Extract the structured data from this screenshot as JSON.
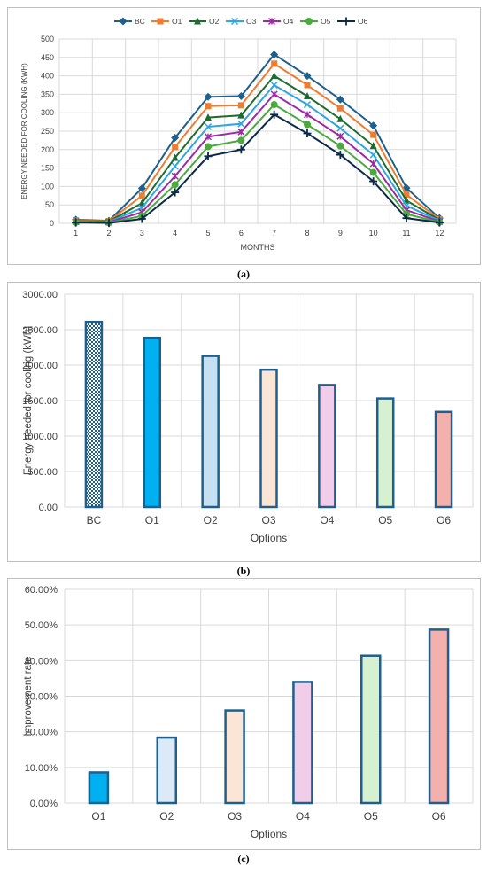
{
  "colors": {
    "BC": "#1f5f8b",
    "O1": "#ed7d31",
    "O2": "#1e6b2e",
    "O3": "#2ea6df",
    "O4": "#9c2ba5",
    "O5": "#4aaa3c",
    "O6": "#0b2a47",
    "bar_border": "#1f5f8b",
    "grid": "#d9d9d9"
  },
  "chart_data": [
    {
      "type": "line",
      "caption": "(a)",
      "title": "",
      "xlabel": "MONTHS",
      "ylabel": "ENERGY NEEDED FOR COOLING (KWH)",
      "x": [
        1,
        2,
        3,
        4,
        5,
        6,
        7,
        8,
        9,
        10,
        11,
        12
      ],
      "x_ticks": [
        "1",
        "2",
        "3",
        "4",
        "5",
        "6",
        "7",
        "8",
        "9",
        "10",
        "11",
        "12"
      ],
      "ylim": [
        0,
        500
      ],
      "y_ticks": [
        "0",
        "50",
        "100",
        "150",
        "200",
        "250",
        "300",
        "350",
        "400",
        "450",
        "500"
      ],
      "grid": true,
      "legend_position": "top",
      "series": [
        {
          "name": "BC",
          "marker": "diamond",
          "values": [
            10,
            7,
            95,
            232,
            343,
            345,
            458,
            400,
            336,
            265,
            96,
            14
          ]
        },
        {
          "name": "O1",
          "marker": "square",
          "values": [
            8,
            6,
            75,
            207,
            318,
            320,
            433,
            375,
            312,
            240,
            78,
            11
          ]
        },
        {
          "name": "O2",
          "marker": "triangle",
          "values": [
            6,
            5,
            55,
            178,
            287,
            293,
            400,
            345,
            283,
            210,
            62,
            9
          ]
        },
        {
          "name": "O3",
          "marker": "x",
          "values": [
            5,
            4,
            42,
            155,
            262,
            270,
            375,
            322,
            258,
            186,
            48,
            7
          ]
        },
        {
          "name": "O4",
          "marker": "xbar",
          "values": [
            4,
            3,
            30,
            128,
            235,
            248,
            350,
            295,
            236,
            162,
            36,
            5
          ]
        },
        {
          "name": "O5",
          "marker": "circle",
          "values": [
            3,
            2,
            20,
            105,
            208,
            225,
            322,
            268,
            210,
            138,
            25,
            3
          ]
        },
        {
          "name": "O6",
          "marker": "plus",
          "values": [
            2,
            1,
            12,
            84,
            182,
            200,
            295,
            244,
            186,
            114,
            14,
            2
          ]
        }
      ]
    },
    {
      "type": "bar",
      "caption": "(b)",
      "title": "",
      "xlabel": "Options",
      "ylabel": "Energy needed for cooling (kWh)",
      "categories": [
        "BC",
        "O1",
        "O2",
        "O3",
        "O4",
        "O5",
        "O6"
      ],
      "values": [
        2610,
        2385,
        2130,
        1935,
        1720,
        1530,
        1340
      ],
      "ylim": [
        0,
        3000
      ],
      "y_ticks": [
        "0.00",
        "500.00",
        "1000.00",
        "1500.00",
        "2000.00",
        "2500.00",
        "3000.00"
      ],
      "grid": true,
      "bar_fills": [
        "pattern",
        "#00b0f0",
        "#c5e0f3",
        "#fbe5d6",
        "#f2cdea",
        "#d6f0d0",
        "#f4b0ad"
      ]
    },
    {
      "type": "bar",
      "caption": "(c)",
      "title": "",
      "xlabel": "Options",
      "ylabel": "Improvement rate",
      "categories": [
        "O1",
        "O2",
        "O3",
        "O4",
        "O5",
        "O6"
      ],
      "values": [
        8.6,
        18.4,
        26.0,
        34.0,
        41.4,
        48.7
      ],
      "ylim": [
        0,
        60
      ],
      "y_ticks": [
        "0.00%",
        "10.00%",
        "20.00%",
        "30.00%",
        "40.00%",
        "50.00%",
        "60.00%"
      ],
      "grid": true,
      "bar_fills": [
        "#00b0f0",
        "#dceaf7",
        "#fbe5d6",
        "#f2cdea",
        "#d6f0d0",
        "#f4b0ad"
      ]
    }
  ]
}
